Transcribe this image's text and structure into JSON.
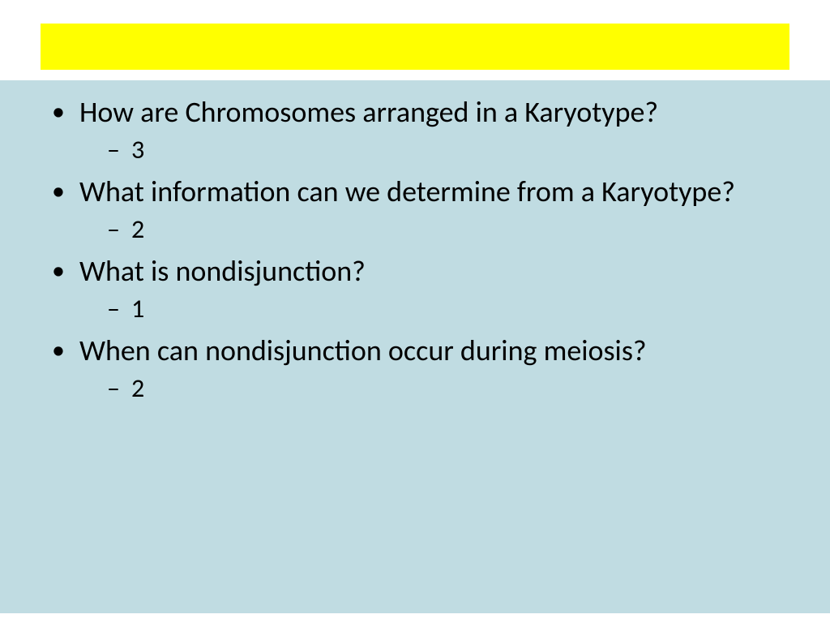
{
  "header": {
    "background_color": "#ffff00"
  },
  "content": {
    "background_color": "#c0dce2",
    "text_color": "#000000",
    "bullet_fontsize": 36,
    "sub_fontsize": 32,
    "items": [
      {
        "question": "How are Chromosomes arranged in a Karyotype?",
        "answer": "3"
      },
      {
        "question": "What information can we determine from a Karyotype?",
        "answer": "2"
      },
      {
        "question": "What is nondisjunction?",
        "answer": "1"
      },
      {
        "question": "When can nondisjunction occur during meiosis?",
        "answer": "2"
      }
    ]
  }
}
